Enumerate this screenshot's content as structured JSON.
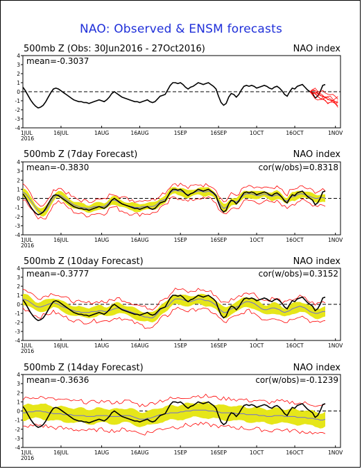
{
  "title": "NAO: Observed & ENSM forecasts",
  "chart_data": [
    {
      "type": "line",
      "panel_title": "500mb Z (Obs: 30Jun2016 - 27Oct2016)",
      "right_label": "NAO index",
      "mean_label": "mean=-0.3037",
      "cor_label": "",
      "ylim": [
        -4,
        4
      ],
      "yticks": [
        "4",
        "3",
        "2",
        "1",
        "0",
        "-1",
        "-2",
        "-3",
        "-4"
      ],
      "x_tick_labels": [
        "1JUL 2016",
        "16JUL",
        "1AUG",
        "16AUG",
        "1SEP",
        "16SEP",
        "1OCT",
        "16OCT",
        "1NOV"
      ],
      "x_days": [
        0,
        1,
        2,
        3,
        4,
        5,
        6,
        7,
        8,
        9,
        10,
        11,
        12,
        13,
        14,
        15,
        16,
        17,
        18,
        19,
        20,
        21,
        22,
        23,
        24,
        25,
        26,
        27,
        28,
        29,
        30,
        31,
        32,
        33,
        34,
        35,
        36,
        37,
        38,
        39,
        40,
        41,
        42,
        43,
        44,
        45,
        46,
        47,
        48,
        49,
        50,
        51,
        52,
        53,
        54,
        55,
        56,
        57,
        58,
        59,
        60,
        61,
        62,
        63,
        64,
        65,
        66,
        67,
        68,
        69,
        70,
        71,
        72,
        73,
        74,
        75,
        76,
        77,
        78,
        79,
        80,
        81,
        82,
        83,
        84,
        85,
        86,
        87,
        88,
        89,
        90,
        91,
        92,
        93,
        94,
        95,
        96,
        97,
        98,
        99,
        100,
        101,
        102,
        103,
        104,
        105,
        106,
        107,
        108,
        109,
        110,
        111,
        112,
        113,
        114,
        115,
        116,
        117,
        118,
        119
      ],
      "observed": [
        0.5,
        0.1,
        -0.4,
        -0.9,
        -1.3,
        -1.6,
        -1.8,
        -1.7,
        -1.5,
        -1.1,
        -0.6,
        -0.1,
        0.3,
        0.4,
        0.3,
        0.1,
        -0.1,
        -0.3,
        -0.5,
        -0.7,
        -0.9,
        -1.0,
        -1.1,
        -1.1,
        -1.2,
        -1.2,
        -1.3,
        -1.2,
        -1.1,
        -1.0,
        -0.9,
        -1.0,
        -1.1,
        -0.9,
        -0.6,
        -0.2,
        0.0,
        -0.2,
        -0.4,
        -0.6,
        -0.7,
        -0.8,
        -0.9,
        -1.0,
        -1.1,
        -1.1,
        -1.2,
        -1.1,
        -1.0,
        -0.9,
        -1.1,
        -1.2,
        -1.1,
        -0.8,
        -0.5,
        -0.4,
        -0.3,
        0.2,
        0.7,
        1.0,
        1.0,
        0.9,
        1.0,
        0.8,
        0.5,
        0.3,
        0.5,
        0.6,
        0.8,
        1.0,
        0.9,
        0.8,
        0.9,
        1.0,
        0.8,
        0.6,
        0.3,
        -0.5,
        -1.2,
        -1.5,
        -1.3,
        -0.6,
        -0.2,
        -0.3,
        -0.6,
        -0.3,
        0.2,
        0.6,
        0.7,
        0.6,
        0.7,
        0.6,
        0.4,
        0.5,
        0.6,
        0.7,
        0.6,
        0.4,
        0.3,
        0.5,
        0.6,
        0.4,
        0.1,
        -0.3,
        -0.5,
        0.0,
        0.4,
        0.3,
        0.6,
        0.7,
        0.8,
        0.5,
        0.2,
        0.0,
        -0.2,
        -0.7,
        -0.5,
        0.0,
        0.7,
        0.8
      ],
      "forecast_members_day_start": 113
    },
    {
      "type": "line",
      "panel_title": "500mb Z (7day Forecast)",
      "right_label": "NAO index",
      "mean_label": "mean=-0.3830",
      "cor_label": "cor(w/obs)=0.8318",
      "ylim": [
        -4,
        4
      ],
      "yticks": [
        "4",
        "3",
        "2",
        "1",
        "0",
        "-1",
        "-2",
        "-3",
        "-4"
      ],
      "x_tick_labels": [
        "1JUL 2016",
        "16JUL",
        "1AUG",
        "16AUG",
        "1SEP",
        "16SEP",
        "1OCT",
        "16OCT",
        "1NOV"
      ],
      "series": [
        {
          "name": "",
          "values": [
            0.7,
            0.5,
            0.2,
            -0.2,
            -0.6,
            -1.0,
            -1.3,
            -1.5,
            -1.5,
            -1.3,
            -0.9,
            -0.4,
            0.0,
            0.3,
            0.4,
            0.3,
            0.1,
            -0.1,
            -0.3,
            -0.5,
            -0.7,
            -0.8,
            -0.9,
            -1.0,
            -1.0,
            -1.1,
            -1.1,
            -1.0,
            -0.9,
            -0.9,
            -0.9,
            -0.9,
            -0.9,
            -0.7,
            -0.4,
            -0.2,
            -0.2,
            -0.3,
            -0.5,
            -0.6,
            -0.7,
            -0.8,
            -0.9,
            -0.9,
            -1.0,
            -1.0,
            -1.0,
            -0.9,
            -0.9,
            -0.9,
            -0.9,
            -0.9,
            -0.8,
            -0.6,
            -0.3,
            -0.2,
            -0.1,
            0.2,
            0.6,
            0.8,
            0.9,
            0.8,
            0.8,
            0.7,
            0.5,
            0.4,
            0.5,
            0.6,
            0.7,
            0.8,
            0.8,
            0.7,
            0.7,
            0.8,
            0.7,
            0.5,
            0.2,
            -0.3,
            -0.8,
            -1.1,
            -1.0,
            -0.6,
            -0.3,
            -0.3,
            -0.4,
            -0.2,
            0.1,
            0.4,
            0.5,
            0.5,
            0.5,
            0.4,
            0.3,
            0.3,
            0.4,
            0.5,
            0.4,
            0.3,
            0.2,
            0.3,
            0.4,
            0.3,
            0.1,
            -0.2,
            -0.3,
            0.0,
            0.2,
            0.2,
            0.4,
            0.5,
            0.5,
            0.4,
            0.3,
            0.2,
            0.1,
            0.0,
            0.0,
            0.1,
            0.1,
            0.0
          ]
        }
      ]
    },
    {
      "type": "line",
      "panel_title": "500mb Z (10day Forecast)",
      "right_label": "NAO index",
      "mean_label": "mean=-0.3777",
      "cor_label": "cor(w/obs)=0.3152",
      "ylim": [
        -4,
        4
      ],
      "yticks": [
        "4",
        "3",
        "2",
        "1",
        "0",
        "-1",
        "-2",
        "-3",
        "-4"
      ],
      "x_tick_labels": [
        "1JUL 2016",
        "16JUL",
        "1AUG",
        "16AUG",
        "1SEP",
        "16SEP",
        "1OCT",
        "16OCT",
        "1NOV"
      ],
      "series": [
        {
          "name": "",
          "values": [
            0.6,
            0.5,
            0.4,
            0.2,
            0.0,
            -0.2,
            -0.3,
            -0.3,
            -0.2,
            -0.1,
            0.0,
            0.1,
            0.2,
            0.1,
            0.0,
            -0.2,
            -0.3,
            -0.4,
            -0.5,
            -0.6,
            -0.7,
            -0.8,
            -0.8,
            -0.9,
            -0.9,
            -0.9,
            -0.9,
            -0.8,
            -0.8,
            -0.8,
            -0.7,
            -0.7,
            -0.8,
            -0.8,
            -0.7,
            -0.6,
            -0.5,
            -0.4,
            -0.4,
            -0.5,
            -0.6,
            -0.7,
            -0.8,
            -0.9,
            -1.0,
            -1.1,
            -1.2,
            -1.3,
            -1.4,
            -1.4,
            -1.5,
            -1.5,
            -1.3,
            -1.0,
            -0.6,
            -0.4,
            -0.3,
            -0.2,
            0.1,
            0.4,
            0.6,
            0.6,
            0.6,
            0.5,
            0.4,
            0.3,
            0.3,
            0.4,
            0.5,
            0.6,
            0.6,
            0.5,
            0.4,
            0.4,
            0.3,
            0.1,
            -0.1,
            -0.4,
            -0.7,
            -0.9,
            -0.9,
            -0.7,
            -0.5,
            -0.4,
            -0.3,
            -0.2,
            0.0,
            0.2,
            0.3,
            0.3,
            0.2,
            0.1,
            -0.1,
            -0.3,
            -0.5,
            -0.6,
            -0.6,
            -0.5,
            -0.4,
            -0.4,
            -0.5,
            -0.6,
            -0.8,
            -0.9,
            -0.8,
            -0.7,
            -0.5,
            -0.4,
            -0.3,
            -0.2,
            -0.3,
            -0.4,
            -0.6,
            -0.8,
            -0.9,
            -1.0,
            -1.0,
            -0.9,
            -0.8,
            -0.8
          ]
        }
      ]
    },
    {
      "type": "line",
      "panel_title": "500mb Z (14day Forecast)",
      "right_label": "NAO index",
      "mean_label": "mean=-0.3636",
      "cor_label": "cor(w/obs)=-0.1239",
      "ylim": [
        -4,
        4
      ],
      "yticks": [
        "4",
        "3",
        "2",
        "1",
        "0",
        "-1",
        "-2",
        "-3",
        "-4"
      ],
      "x_tick_labels": [
        "1JUL 2016",
        "16JUL",
        "1AUG",
        "16AUG",
        "1SEP",
        "16SEP",
        "1OCT",
        "16OCT",
        "1NOV"
      ],
      "series": [
        {
          "name": "",
          "values": [
            -0.2,
            -0.2,
            -0.1,
            -0.1,
            -0.1,
            0.0,
            0.0,
            0.0,
            -0.1,
            -0.1,
            -0.2,
            -0.2,
            -0.3,
            -0.3,
            -0.3,
            -0.3,
            -0.4,
            -0.4,
            -0.4,
            -0.4,
            -0.5,
            -0.5,
            -0.5,
            -0.5,
            -0.5,
            -0.6,
            -0.6,
            -0.6,
            -0.6,
            -0.5,
            -0.5,
            -0.5,
            -0.5,
            -0.5,
            -0.6,
            -0.6,
            -0.6,
            -0.6,
            -0.6,
            -0.5,
            -0.5,
            -0.5,
            -0.5,
            -0.6,
            -0.7,
            -0.8,
            -0.9,
            -0.9,
            -0.9,
            -0.8,
            -0.8,
            -0.7,
            -0.6,
            -0.5,
            -0.4,
            -0.4,
            -0.3,
            -0.3,
            -0.2,
            -0.2,
            -0.2,
            -0.2,
            -0.1,
            -0.1,
            0.0,
            0.0,
            0.0,
            0.1,
            0.1,
            0.1,
            0.1,
            0.1,
            0.1,
            0.0,
            0.0,
            0.0,
            -0.1,
            -0.1,
            -0.2,
            -0.2,
            -0.2,
            -0.2,
            -0.2,
            -0.2,
            -0.3,
            -0.3,
            -0.3,
            -0.3,
            -0.4,
            -0.4,
            -0.4,
            -0.4,
            -0.4,
            -0.5,
            -0.5,
            -0.5,
            -0.6,
            -0.6,
            -0.6,
            -0.5,
            -0.5,
            -0.5,
            -0.5,
            -0.6,
            -0.6,
            -0.6,
            -0.6,
            -0.6,
            -0.7,
            -0.7,
            -0.7,
            -0.7,
            -0.8,
            -0.8,
            -0.8,
            -0.9,
            -0.9,
            -1.0,
            -1.0,
            -0.9
          ]
        }
      ]
    }
  ],
  "colors": {
    "title": "#1f2fd9",
    "observed_line": "#000000",
    "ensemble_spread": "#e6e619",
    "member_envelope": "#ff0000",
    "ensemble_mean": "#6b6bd6",
    "zero_line": "#000000"
  }
}
